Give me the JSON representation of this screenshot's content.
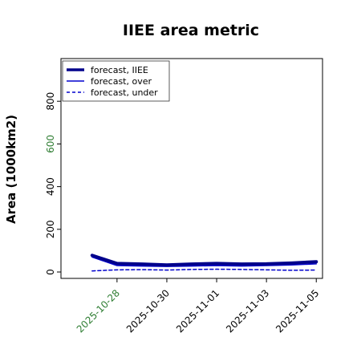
{
  "chart_data": {
    "type": "line",
    "title": "IIEE area metric",
    "xlabel": "",
    "ylabel": "Area (1000km2)",
    "ylim": [
      -30,
      1000
    ],
    "xlim": [
      "2025-10-26",
      "2025-11-05"
    ],
    "x": [
      "2025-10-27",
      "2025-10-28",
      "2025-10-29",
      "2025-10-30",
      "2025-10-31",
      "2025-11-01",
      "2025-11-02",
      "2025-11-03",
      "2025-11-04",
      "2025-11-05"
    ],
    "x_ticks": [
      "2025-10-28",
      "2025-10-30",
      "2025-11-01",
      "2025-11-03",
      "2025-11-05"
    ],
    "y_ticks": [
      0,
      200,
      400,
      600,
      800
    ],
    "y_tick_colors": [
      "#000000",
      "#000000",
      "#000000",
      "#2e7d32",
      "#000000"
    ],
    "x_tick_colors": [
      "#2e7d32",
      "#000000",
      "#000000",
      "#000000",
      "#000000"
    ],
    "grid": false,
    "legend_position": "top-left",
    "series": [
      {
        "name": "forecast, IIEE",
        "style": "solid-thick",
        "color": "#00008b",
        "values": [
          78,
          40,
          37,
          33,
          37,
          40,
          37,
          38,
          42,
          48
        ]
      },
      {
        "name": "forecast, over",
        "style": "solid",
        "color": "#0000cd",
        "values": [
          70,
          30,
          28,
          26,
          28,
          30,
          28,
          30,
          33,
          38
        ]
      },
      {
        "name": "forecast, under",
        "style": "dashed",
        "color": "#0000cd",
        "values": [
          5,
          10,
          11,
          9,
          12,
          13,
          12,
          10,
          8,
          9
        ]
      }
    ]
  }
}
